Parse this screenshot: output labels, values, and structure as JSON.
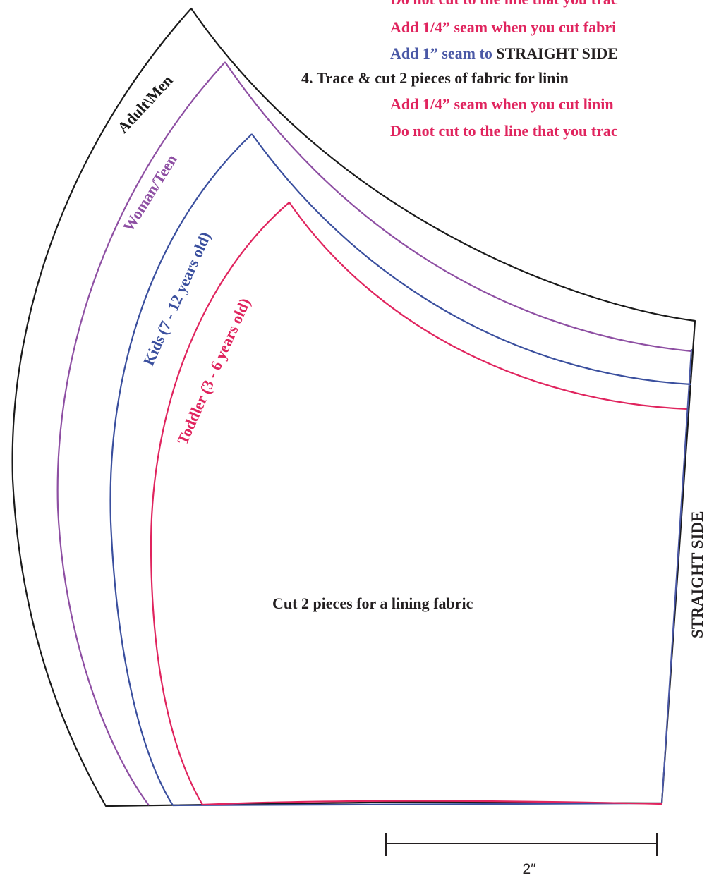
{
  "colors": {
    "adult": "#1a1a1a",
    "woman": "#8e4fa3",
    "kids": "#3a4f9e",
    "toddler": "#e0245e",
    "text_dark": "#231f20",
    "seam_blue": "#4a58a6"
  },
  "instructions": {
    "line1": "Do not cut to the line that you trac",
    "line2": "Add 1/4” seam when you cut fabri",
    "line3_blue": "Add 1” seam to ",
    "line3_dark": "STRAIGHT SIDE",
    "line4": "4. Trace & cut 2 pieces of fabric for linin",
    "line5": "Add 1/4” seam when you cut linin",
    "line6": "Do not cut to the line that you trac"
  },
  "size_labels": {
    "adult": "Adult\\Men",
    "woman": "Woman/Teen",
    "kids_bold": "Kids",
    "kids_rest": "(7 - 12 years old)",
    "toddler": "Toddler (3 - 6 years old)"
  },
  "center_label": "Cut 2 pieces for a lining fabric",
  "side_label": "STRAIGHT SIDE",
  "scale_label": "2″"
}
